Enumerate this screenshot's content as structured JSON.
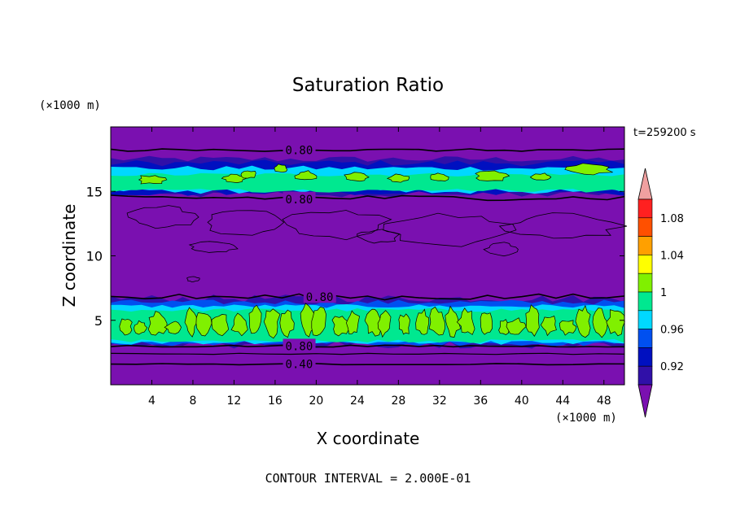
{
  "chart_data": {
    "type": "heatmap",
    "title": "Saturation Ratio",
    "xlabel": "X coordinate",
    "ylabel": "Z coordinate",
    "x_units": "(×1000 m)",
    "y_units": "(×1000 m)",
    "time_label": "t=259200 s",
    "footer": "CONTOUR INTERVAL = 2.000E-01",
    "xlim": [
      0,
      50
    ],
    "ylim": [
      0,
      20
    ],
    "x_ticks": [
      4,
      8,
      12,
      16,
      20,
      24,
      28,
      32,
      36,
      40,
      44,
      48
    ],
    "y_ticks": [
      5,
      10,
      15
    ],
    "colorbar": {
      "tick_labels": [
        "0.92",
        "0.96",
        "1",
        "1.04",
        "1.08"
      ],
      "tick_values": [
        0.92,
        0.96,
        1.0,
        1.04,
        1.08
      ],
      "levels": [
        0.92,
        0.94,
        0.96,
        0.98,
        1.0,
        1.02,
        1.04,
        1.06,
        1.08,
        1.1
      ],
      "colors": [
        "#7a10b0",
        "#3010a8",
        "#0010c0",
        "#0050f0",
        "#00d8ff",
        "#00e890",
        "#80f000",
        "#ffff00",
        "#ffa000",
        "#ff5000",
        "#ff2020",
        "#f0a0a0"
      ]
    },
    "contour_labels": [
      {
        "text": "0.80",
        "x": 17.0,
        "z": 18.2
      },
      {
        "text": "0.80",
        "x": 17.0,
        "z": 14.4
      },
      {
        "text": "0.80",
        "x": 19.0,
        "z": 6.8
      },
      {
        "text": "0.80",
        "x": 17.0,
        "z": 3.0
      },
      {
        "text": "0.40",
        "x": 17.0,
        "z": 1.6
      }
    ],
    "regions": [
      {
        "name": "upper-dry",
        "zmin": 16.8,
        "zmax": 20,
        "value": 0.5
      },
      {
        "name": "upper-cloud-band",
        "zmin": 14.8,
        "zmax": 17.5,
        "value": 1.0
      },
      {
        "name": "middle-dry",
        "zmin": 6.5,
        "zmax": 14.8,
        "value": 0.6
      },
      {
        "name": "lower-cloud-band",
        "zmin": 3.2,
        "zmax": 6.3,
        "value": 1.0
      },
      {
        "name": "lower-dry",
        "zmin": 0,
        "zmax": 3.2,
        "value": 0.5
      }
    ]
  }
}
